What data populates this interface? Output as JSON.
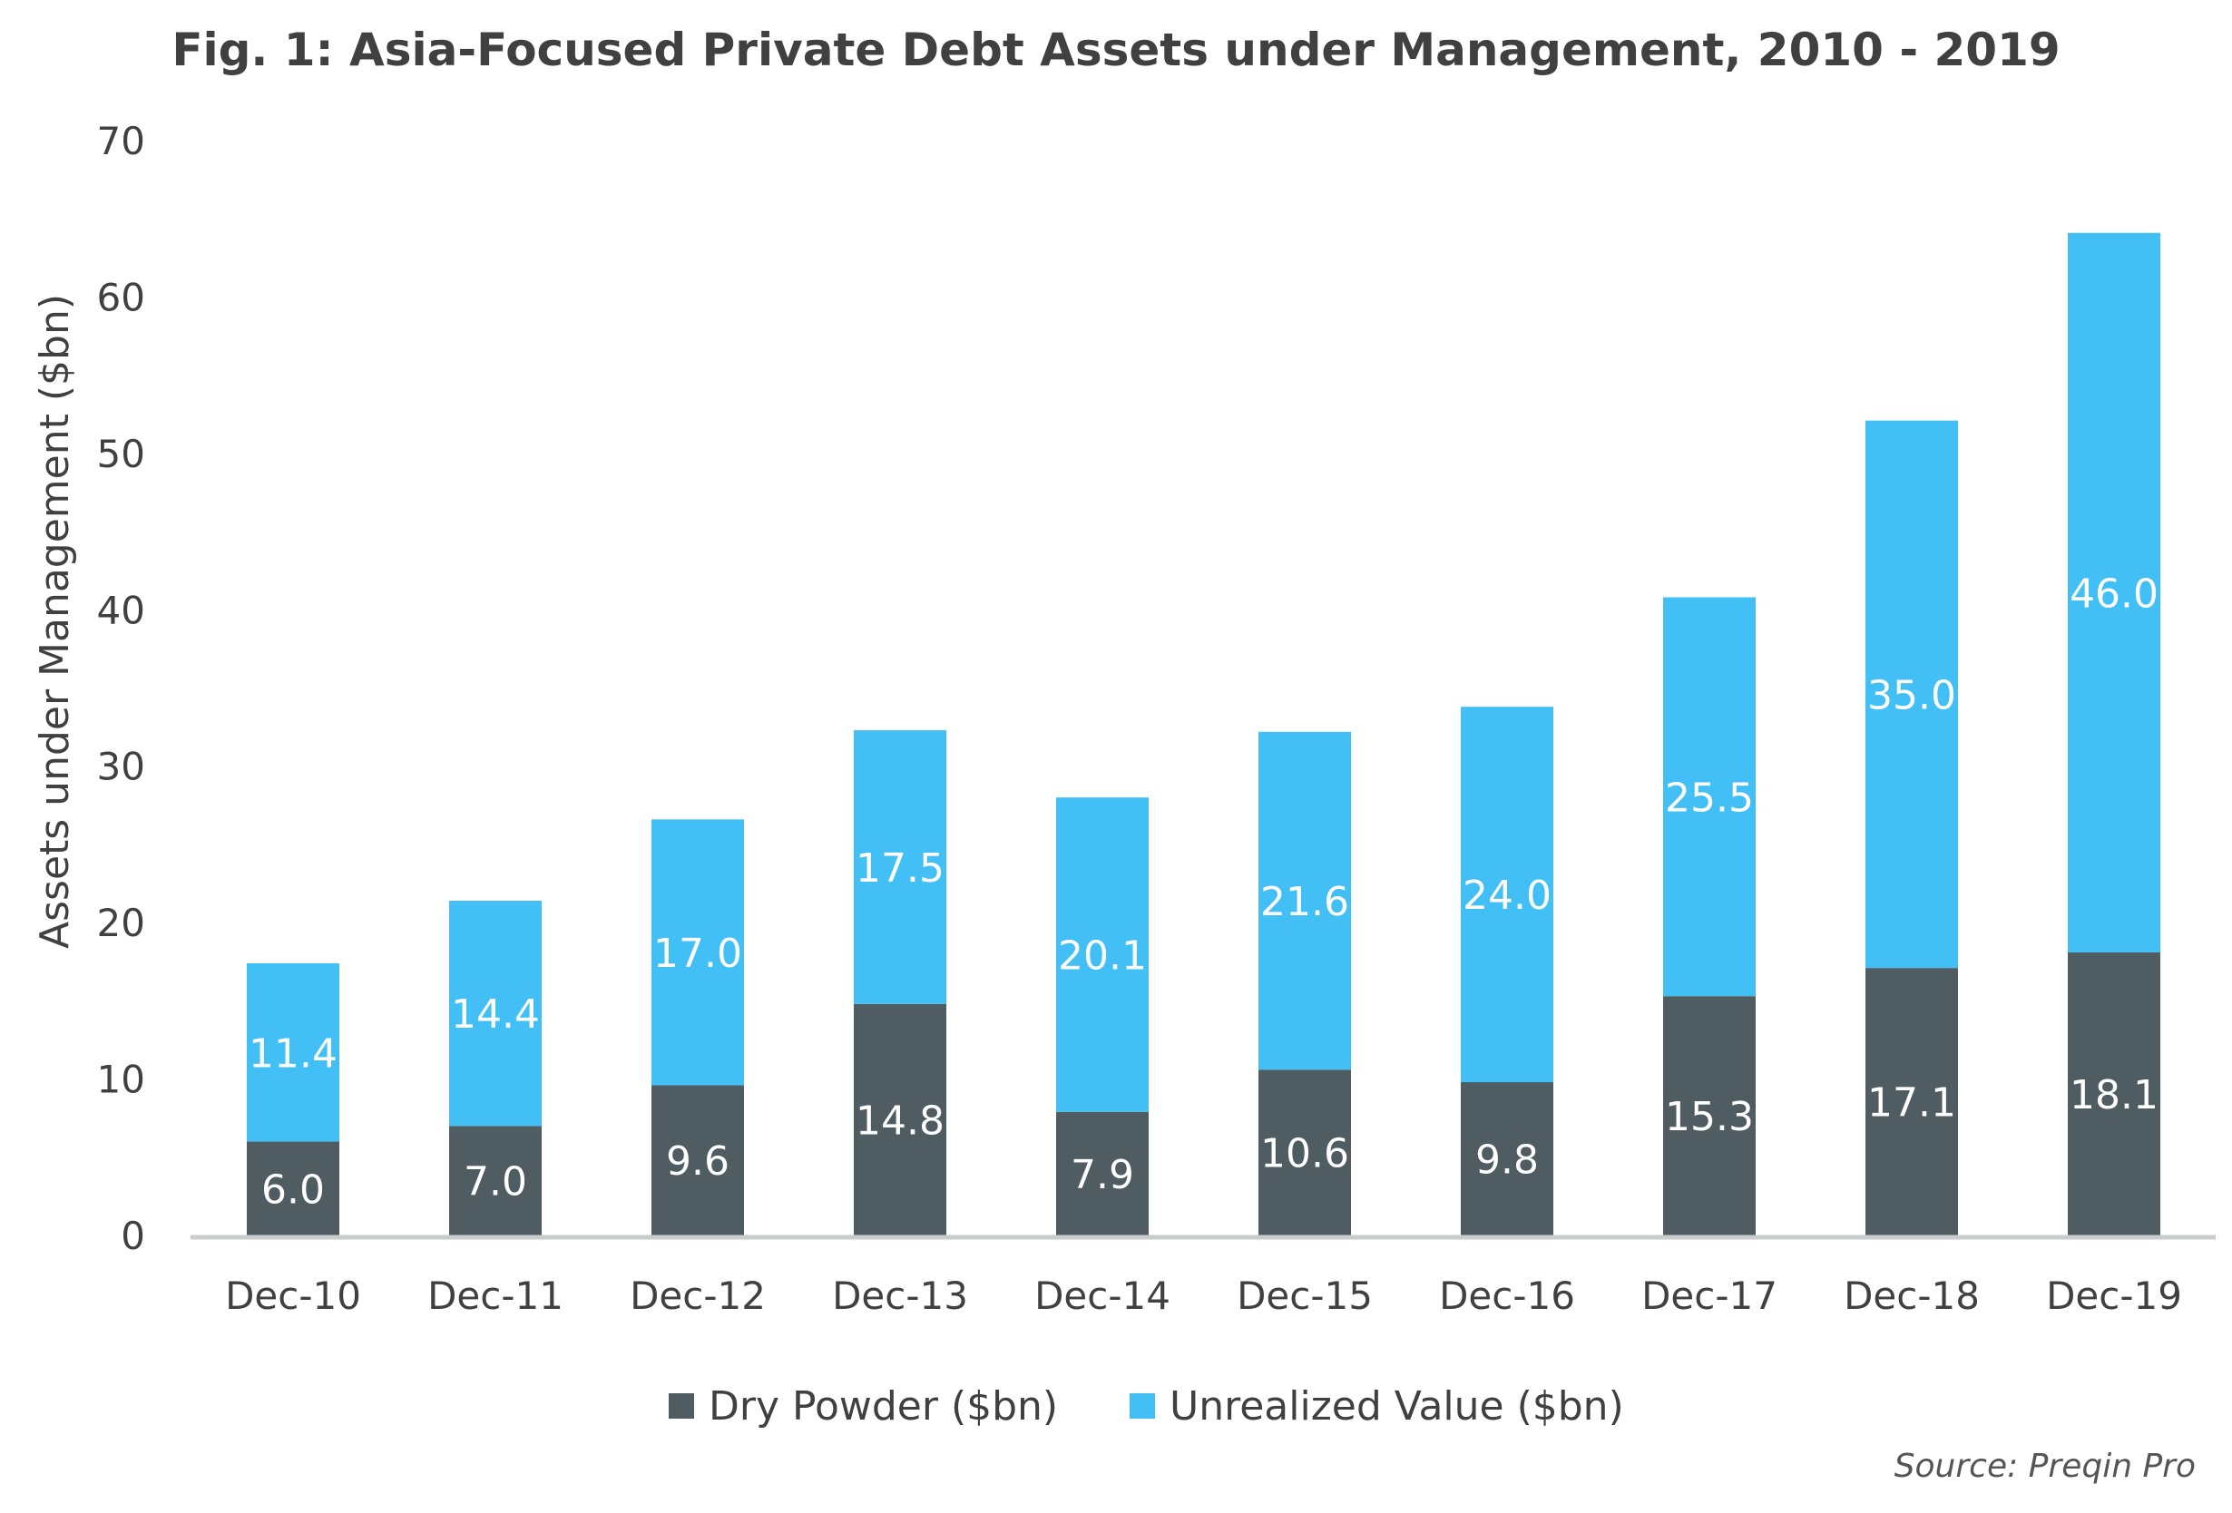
{
  "chart_data": {
    "type": "bar",
    "stacked": true,
    "title": "Fig. 1: Asia-Focused Private Debt Assets under Management, 2010 - 2019",
    "xlabel": "",
    "ylabel": "Assets under Management ($bn)",
    "ylim": [
      0,
      70
    ],
    "yticks": [
      0,
      10,
      20,
      30,
      40,
      50,
      60,
      70
    ],
    "grid": false,
    "legend_position": "bottom",
    "categories": [
      "Dec-10",
      "Dec-11",
      "Dec-12",
      "Dec-13",
      "Dec-14",
      "Dec-15",
      "Dec-16",
      "Dec-17",
      "Dec-18",
      "Dec-19"
    ],
    "series": [
      {
        "name": "Dry Powder ($bn)",
        "color": "#4f5d63",
        "values": [
          6.0,
          7.0,
          9.6,
          14.8,
          7.9,
          10.6,
          9.8,
          15.3,
          17.1,
          18.1
        ],
        "labels": [
          "6.0",
          "7.0",
          "9.6",
          "14.8",
          "7.9",
          "10.6",
          "9.8",
          "15.3",
          "17.1",
          "18.1"
        ]
      },
      {
        "name": "Unrealized Value ($bn)",
        "color": "#42c0f5",
        "values": [
          11.4,
          14.4,
          17.0,
          17.5,
          20.1,
          21.6,
          24.0,
          25.5,
          35.0,
          46.0
        ],
        "labels": [
          "11.4",
          "14.4",
          "17.0",
          "17.5",
          "20.1",
          "21.6",
          "24.0",
          "25.5",
          "35.0",
          "46.0"
        ]
      }
    ],
    "source": "Source: Preqin Pro"
  }
}
